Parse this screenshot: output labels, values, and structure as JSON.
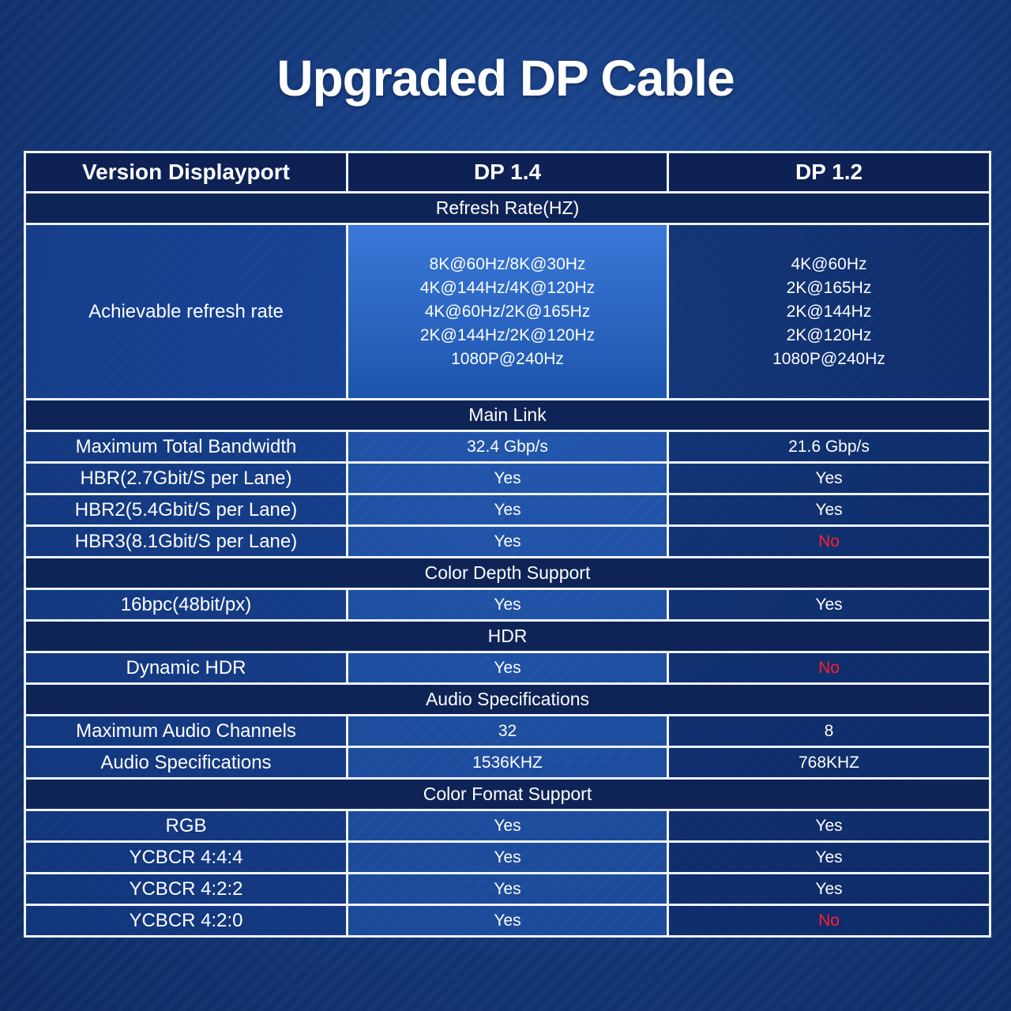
{
  "title": "Upgraded DP Cable",
  "header": {
    "label": "Version Displayport",
    "col1": "DP 1.4",
    "col2": "DP 1.2"
  },
  "sections": {
    "refresh": "Refresh Rate(HZ)",
    "main_link": "Main Link",
    "color_depth": "Color Depth Support",
    "hdr": "HDR",
    "audio": "Audio Specifications",
    "color_format": "Color Fomat Support"
  },
  "refresh_row": {
    "label": "Achievable refresh rate",
    "dp14": [
      "8K@60Hz/8K@30Hz",
      "4K@144Hz/4K@120Hz",
      "4K@60Hz/2K@165Hz",
      "2K@144Hz/2K@120Hz",
      "1080P@240Hz"
    ],
    "dp12": [
      "4K@60Hz",
      "2K@165Hz",
      "2K@144Hz",
      "2K@120Hz",
      "1080P@240Hz"
    ]
  },
  "rows": {
    "bandwidth": {
      "label": "Maximum Total Bandwidth",
      "dp14": "32.4 Gbp/s",
      "dp12": "21.6 Gbp/s"
    },
    "hbr": {
      "label": "HBR(2.7Gbit/S per Lane)",
      "dp14": "Yes",
      "dp12": "Yes"
    },
    "hbr2": {
      "label": "HBR2(5.4Gbit/S per Lane)",
      "dp14": "Yes",
      "dp12": "Yes"
    },
    "hbr3": {
      "label": "HBR3(8.1Gbit/S per Lane)",
      "dp14": "Yes",
      "dp12": "No"
    },
    "bpc16": {
      "label": "16bpc(48bit/px)",
      "dp14": "Yes",
      "dp12": "Yes"
    },
    "dynamic_hdr": {
      "label": "Dynamic HDR",
      "dp14": "Yes",
      "dp12": "No"
    },
    "audio_channels": {
      "label": "Maximum Audio Channels",
      "dp14": "32",
      "dp12": "8"
    },
    "audio_spec": {
      "label": "Audio Specifications",
      "dp14": "1536KHZ",
      "dp12": "768KHZ"
    },
    "rgb": {
      "label": "RGB",
      "dp14": "Yes",
      "dp12": "Yes"
    },
    "ycbcr444": {
      "label": "YCBCR 4:4:4",
      "dp14": "Yes",
      "dp12": "Yes"
    },
    "ycbcr422": {
      "label": "YCBCR 4:2:2",
      "dp14": "Yes",
      "dp12": "Yes"
    },
    "ycbcr420": {
      "label": "YCBCR 4:2:0",
      "dp14": "Yes",
      "dp12": "No"
    }
  },
  "colors": {
    "no": "#ff1f2e",
    "border": "#eef3fb",
    "background": "#153a7d"
  }
}
